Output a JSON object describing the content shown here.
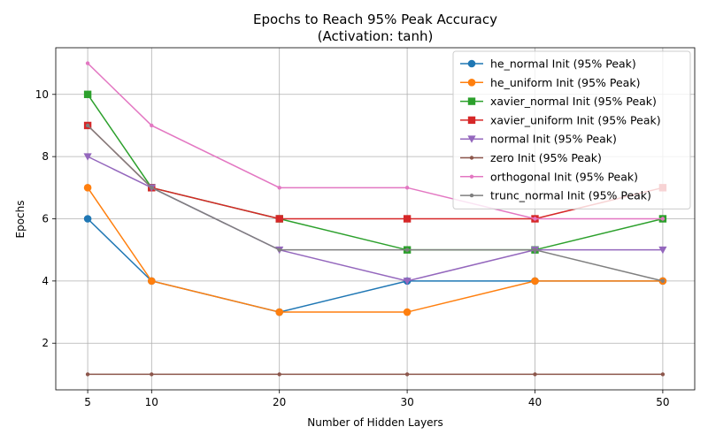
{
  "chart_data": {
    "type": "line",
    "title": "Epochs to Reach 95% Peak Accuracy",
    "subtitle": "(Activation: tanh)",
    "xlabel": "Number of Hidden Layers",
    "ylabel": "Epochs",
    "x": [
      5,
      10,
      20,
      30,
      40,
      50
    ],
    "xticks": [
      5,
      10,
      20,
      30,
      40,
      50
    ],
    "yticks": [
      2,
      4,
      6,
      8,
      10
    ],
    "xlim": [
      2.5,
      52.5
    ],
    "ylim": [
      0.5,
      11.5
    ],
    "grid": true,
    "legend_position": "top-right",
    "series": [
      {
        "name": "he_normal Init (95% Peak)",
        "color": "#1f77b4",
        "marker": "circle",
        "values": [
          6,
          4,
          3,
          4,
          4,
          4
        ]
      },
      {
        "name": "he_uniform Init (95% Peak)",
        "color": "#ff7f0e",
        "marker": "circle",
        "values": [
          7,
          4,
          3,
          3,
          4,
          4
        ]
      },
      {
        "name": "xavier_normal Init (95% Peak)",
        "color": "#2ca02c",
        "marker": "square",
        "values": [
          10,
          7,
          6,
          5,
          5,
          6
        ]
      },
      {
        "name": "xavier_uniform Init (95% Peak)",
        "color": "#d62728",
        "marker": "square",
        "values": [
          9,
          7,
          6,
          6,
          6,
          7
        ]
      },
      {
        "name": "normal Init (95% Peak)",
        "color": "#9467bd",
        "marker": "triangle-down",
        "values": [
          8,
          7,
          5,
          4,
          5,
          5
        ]
      },
      {
        "name": "zero Init (95% Peak)",
        "color": "#8c564b",
        "marker": "point",
        "values": [
          1,
          1,
          1,
          1,
          1,
          1
        ]
      },
      {
        "name": "orthogonal Init (95% Peak)",
        "color": "#e377c2",
        "marker": "point",
        "values": [
          11,
          9,
          7,
          7,
          6,
          6
        ]
      },
      {
        "name": "trunc_normal Init (95% Peak)",
        "color": "#7f7f7f",
        "marker": "point",
        "values": [
          9,
          7,
          5,
          5,
          5,
          4
        ]
      }
    ]
  }
}
